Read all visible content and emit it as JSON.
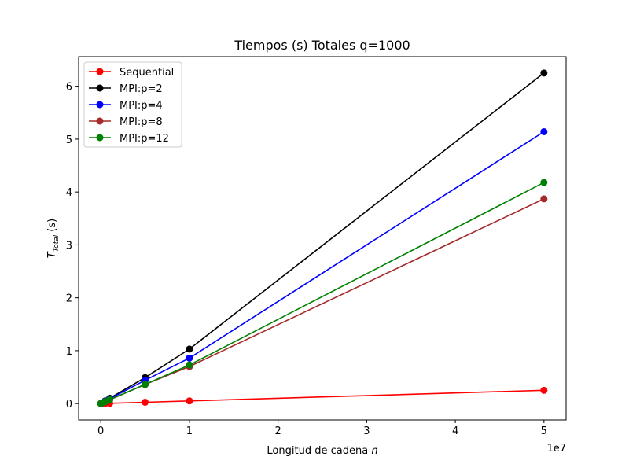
{
  "chart_data": {
    "type": "line",
    "title": "Tiempos (s) Totales q=1000",
    "xlabel": "Longitud de cadena ",
    "xlabel_var": "n",
    "ylabel_main": "T",
    "ylabel_sub": "Total",
    "ylabel_unit": " (s)",
    "x_offset_label": "1e7",
    "x_scale": 10000000,
    "xlim": [
      -2500000,
      52500000
    ],
    "ylim": [
      -0.31,
      6.56
    ],
    "xticks": [
      0,
      10000000,
      20000000,
      30000000,
      40000000,
      50000000
    ],
    "xtick_labels": [
      "0",
      "1",
      "2",
      "3",
      "4",
      "5"
    ],
    "yticks": [
      0,
      1,
      2,
      3,
      4,
      5,
      6
    ],
    "ytick_labels": [
      "0",
      "1",
      "2",
      "3",
      "4",
      "5",
      "6"
    ],
    "grid": false,
    "legend_position": "top-left",
    "x": [
      10000,
      100000,
      500000,
      1000000,
      5000000,
      10000000,
      50000000
    ],
    "series": [
      {
        "name": "Sequential",
        "color": "#ff0000",
        "values": [
          0.0001,
          0.0005,
          0.0025,
          0.005,
          0.025,
          0.05,
          0.25
        ]
      },
      {
        "name": "MPI:p=2",
        "color": "#000000",
        "values": [
          0.001,
          0.01,
          0.05,
          0.1,
          0.49,
          1.03,
          6.25
        ]
      },
      {
        "name": "MPI:p=4",
        "color": "#0000ff",
        "values": [
          0.001,
          0.009,
          0.045,
          0.09,
          0.44,
          0.86,
          5.14
        ]
      },
      {
        "name": "MPI:p=8",
        "color": "#a52a2a",
        "values": [
          0.001,
          0.007,
          0.035,
          0.07,
          0.36,
          0.7,
          3.87
        ]
      },
      {
        "name": "MPI:p=12",
        "color": "#008000",
        "values": [
          0.001,
          0.007,
          0.037,
          0.075,
          0.36,
          0.73,
          4.18
        ]
      }
    ]
  }
}
